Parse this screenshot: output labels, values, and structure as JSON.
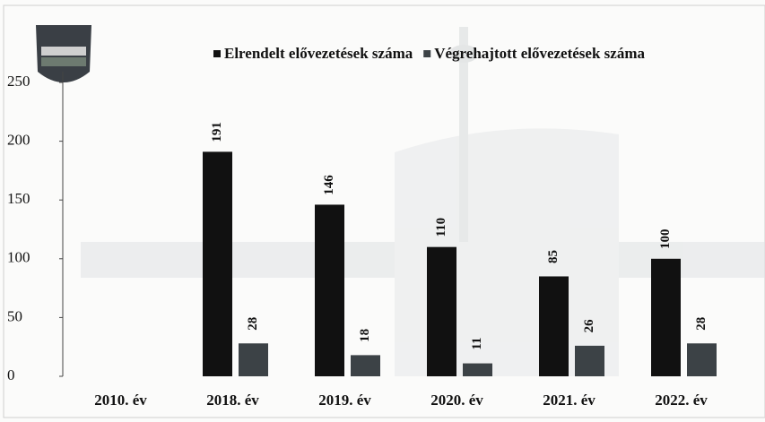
{
  "chart_data": {
    "type": "bar",
    "categories": [
      "2010. év",
      "2018. év",
      "2019. év",
      "2020. év",
      "2021. év",
      "2022. év"
    ],
    "series": [
      {
        "name": "Elrendelt elővezetések száma",
        "color": "#111111",
        "values": [
          null,
          191,
          146,
          110,
          85,
          100
        ]
      },
      {
        "name": "Végrehajtott elővezetések száma",
        "color": "#3c4246",
        "values": [
          null,
          28,
          18,
          11,
          26,
          28
        ]
      }
    ],
    "ylim": [
      0,
      250
    ],
    "yticks": [
      0,
      50,
      100,
      150,
      200,
      250
    ],
    "legend": "top"
  }
}
